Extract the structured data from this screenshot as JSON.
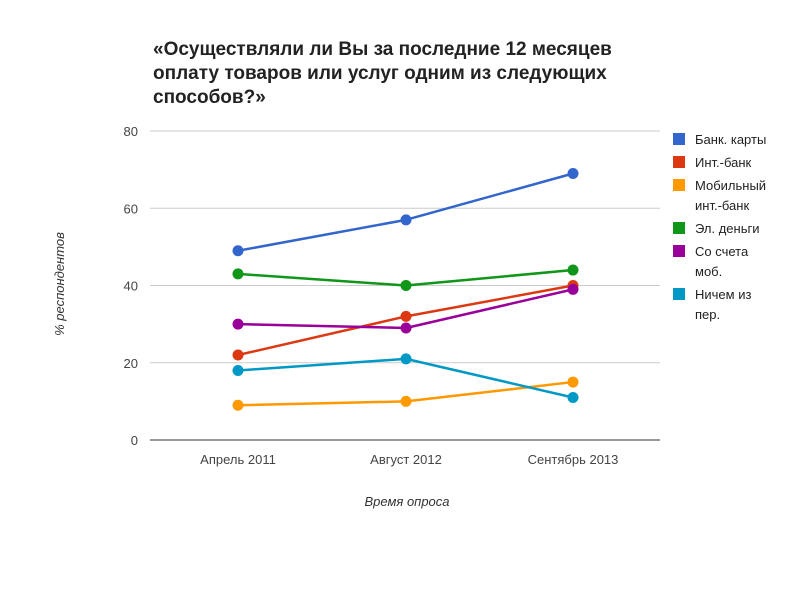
{
  "chart_data": {
    "type": "line",
    "title": "«Осуществляли ли Вы за последние 12 месяцев оплату товаров или услуг одним из следующих способов?»",
    "xlabel": "Время опроса",
    "ylabel": "% респондентов",
    "categories": [
      "Апрель 2011",
      "Август 2012",
      "Сентябрь 2013"
    ],
    "ylim": [
      0,
      80
    ],
    "yticks": [
      0,
      20,
      40,
      60,
      80
    ],
    "grid": true,
    "legend_position": "right",
    "series": [
      {
        "name": "Банк. карты",
        "label_lines": [
          "Банк. карты"
        ],
        "color": "#3366cc",
        "values": [
          49,
          57,
          69
        ]
      },
      {
        "name": "Инт.-банк",
        "label_lines": [
          "Инт.-банк"
        ],
        "color": "#dc3912",
        "values": [
          22,
          32,
          40
        ]
      },
      {
        "name": "Мобильный инт.-банк",
        "label_lines": [
          "Мобильный",
          "инт.-банк"
        ],
        "color": "#ff9900",
        "values": [
          9,
          10,
          15
        ]
      },
      {
        "name": "Эл. деньги",
        "label_lines": [
          "Эл. деньги"
        ],
        "color": "#109618",
        "values": [
          43,
          40,
          44
        ]
      },
      {
        "name": "Со счета моб.",
        "label_lines": [
          "Со счета",
          "моб."
        ],
        "color": "#990099",
        "values": [
          30,
          29,
          39
        ]
      },
      {
        "name": "Ничем из пер.",
        "label_lines": [
          "Ничем из",
          "пер."
        ],
        "color": "#0099c6",
        "values": [
          18,
          21,
          11
        ]
      }
    ]
  }
}
